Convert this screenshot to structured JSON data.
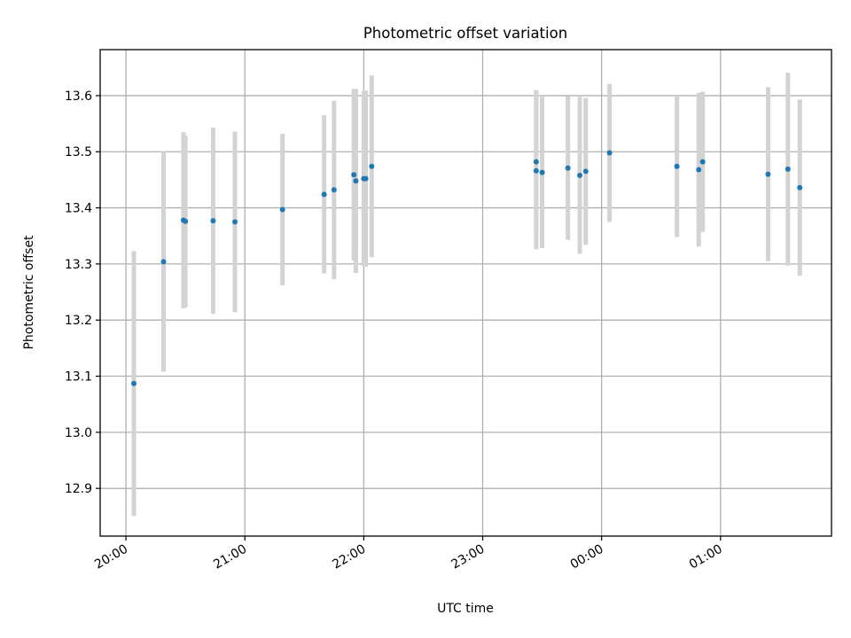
{
  "chart_data": {
    "type": "scatter",
    "title": "Photometric offset variation",
    "xlabel": "UTC time",
    "ylabel": "Photometric offset",
    "x_tick_labels": [
      "20:00",
      "21:00",
      "22:00",
      "23:00",
      "00:00",
      "01:00"
    ],
    "y_tick_labels": [
      "12.9",
      "13.0",
      "13.1",
      "13.2",
      "13.3",
      "13.4",
      "13.5",
      "13.6"
    ],
    "x_ticks": [
      "20:00",
      "21:00",
      "22:00",
      "23:00",
      "00:00",
      "01:00"
    ],
    "y_ticks": [
      12.9,
      13.0,
      13.1,
      13.2,
      13.3,
      13.4,
      13.5,
      13.6
    ],
    "xlim": [
      "19:47",
      "01:56"
    ],
    "ylim": [
      12.815,
      13.682
    ],
    "grid": true,
    "series": [
      {
        "x": [
          "20:04",
          "20:19",
          "20:29",
          "20:30",
          "20:44",
          "20:55",
          "21:19",
          "21:40",
          "21:45",
          "21:55",
          "21:56",
          "22:00",
          "22:01",
          "22:04",
          "23:27",
          "23:27",
          "23:30",
          "23:43",
          "23:49",
          "23:52",
          "00:04",
          "00:38",
          "00:49",
          "00:51",
          "01:24",
          "01:34",
          "01:40"
        ],
        "y": [
          13.087,
          13.304,
          13.378,
          13.376,
          13.377,
          13.375,
          13.397,
          13.424,
          13.432,
          13.459,
          13.448,
          13.452,
          13.452,
          13.474,
          13.466,
          13.482,
          13.463,
          13.471,
          13.458,
          13.465,
          13.498,
          13.474,
          13.468,
          13.482,
          13.46,
          13.469,
          13.436
        ],
        "err": [
          0.236,
          0.196,
          0.157,
          0.153,
          0.166,
          0.161,
          0.135,
          0.141,
          0.159,
          0.153,
          0.164,
          0.156,
          0.157,
          0.162,
          0.14,
          0.128,
          0.135,
          0.128,
          0.14,
          0.131,
          0.123,
          0.126,
          0.137,
          0.125,
          0.155,
          0.172,
          0.157
        ],
        "color": "#1f77b4",
        "errorbar_color": "#d3d3d3"
      }
    ]
  }
}
